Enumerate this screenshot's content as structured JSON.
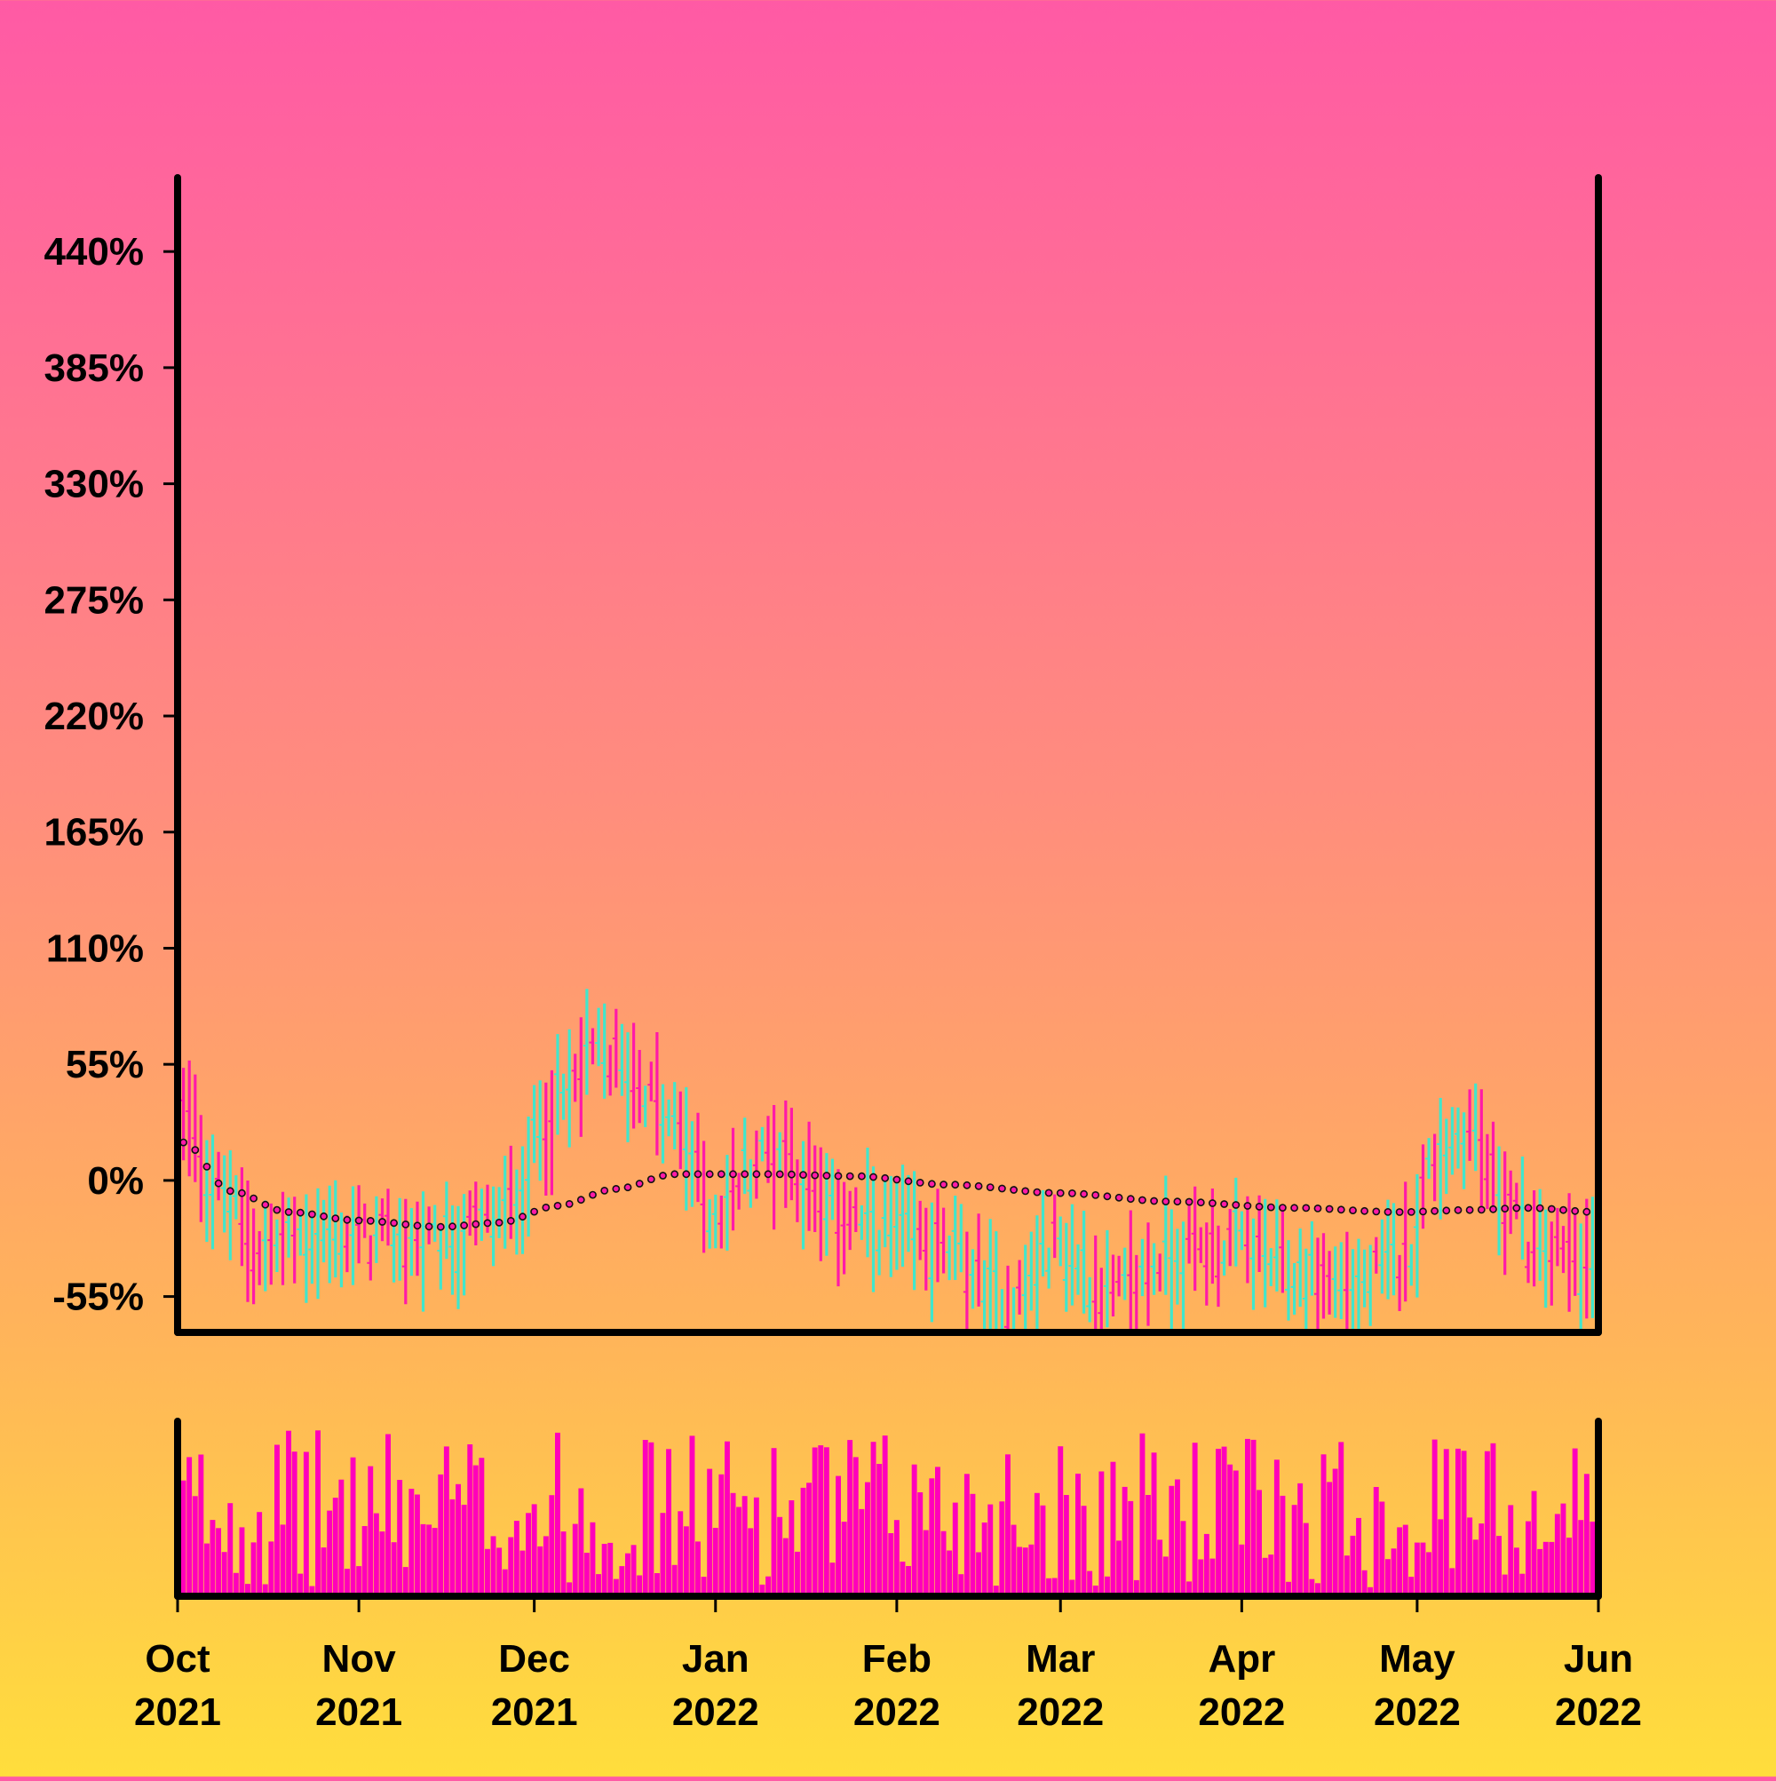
{
  "chart_data": {
    "type": "ohlc",
    "title": "",
    "xlabel": "",
    "ylabel": "",
    "x_range": [
      "2021-10-01",
      "2022-06-01"
    ],
    "y_range": [
      -72,
      475
    ],
    "y_ticks": [
      {
        "value": 440,
        "label": "440%"
      },
      {
        "value": 385,
        "label": "385%"
      },
      {
        "value": 330,
        "label": "330%"
      },
      {
        "value": 275,
        "label": "275%"
      },
      {
        "value": 220,
        "label": "220%"
      },
      {
        "value": 165,
        "label": "165%"
      },
      {
        "value": 110,
        "label": "110%"
      },
      {
        "value": 55,
        "label": "55%"
      },
      {
        "value": 0,
        "label": "0%"
      },
      {
        "value": -55,
        "label": "-55%"
      }
    ],
    "x_ticks": [
      {
        "date": "2021-10-01",
        "month": "Oct",
        "year": "2021"
      },
      {
        "date": "2021-11-01",
        "month": "Nov",
        "year": "2021"
      },
      {
        "date": "2021-12-01",
        "month": "Dec",
        "year": "2021"
      },
      {
        "date": "2022-01-01",
        "month": "Jan",
        "year": "2022"
      },
      {
        "date": "2022-02-01",
        "month": "Feb",
        "year": "2022"
      },
      {
        "date": "2022-03-01",
        "month": "Mar",
        "year": "2022"
      },
      {
        "date": "2022-04-01",
        "month": "Apr",
        "year": "2022"
      },
      {
        "date": "2022-05-01",
        "month": "May",
        "year": "2022"
      },
      {
        "date": "2022-06-01",
        "month": "Jun",
        "year": "2022"
      }
    ],
    "colors": {
      "up": "#40e6cc",
      "down": "#ff1aa8",
      "volume": "#ff00bb",
      "trend_marker": "#ff1aa8",
      "axis": "#000000"
    },
    "ohlc_anchors": [
      {
        "date": "2021-10-02",
        "value": 28
      },
      {
        "date": "2021-10-08",
        "value": -5
      },
      {
        "date": "2021-10-15",
        "value": -32
      },
      {
        "date": "2021-10-25",
        "value": -26
      },
      {
        "date": "2021-11-05",
        "value": -28
      },
      {
        "date": "2021-11-15",
        "value": -30
      },
      {
        "date": "2021-11-25",
        "value": -18
      },
      {
        "date": "2021-12-05",
        "value": 35
      },
      {
        "date": "2021-12-12",
        "value": 60
      },
      {
        "date": "2021-12-18",
        "value": 50
      },
      {
        "date": "2021-12-25",
        "value": 25
      },
      {
        "date": "2022-01-01",
        "value": -15
      },
      {
        "date": "2022-01-08",
        "value": 10
      },
      {
        "date": "2022-01-12",
        "value": 15
      },
      {
        "date": "2022-01-20",
        "value": -15
      },
      {
        "date": "2022-02-01",
        "value": -25
      },
      {
        "date": "2022-02-10",
        "value": -35
      },
      {
        "date": "2022-02-20",
        "value": -60
      },
      {
        "date": "2022-02-28",
        "value": -30
      },
      {
        "date": "2022-03-10",
        "value": -55
      },
      {
        "date": "2022-03-20",
        "value": -35
      },
      {
        "date": "2022-04-01",
        "value": -30
      },
      {
        "date": "2022-04-10",
        "value": -45
      },
      {
        "date": "2022-04-20",
        "value": -50
      },
      {
        "date": "2022-04-28",
        "value": -40
      },
      {
        "date": "2022-05-05",
        "value": 15
      },
      {
        "date": "2022-05-10",
        "value": 25
      },
      {
        "date": "2022-05-15",
        "value": -5
      },
      {
        "date": "2022-05-22",
        "value": -35
      },
      {
        "date": "2022-06-01",
        "value": -40
      }
    ],
    "trend_line": [
      {
        "date": "2021-10-02",
        "value": 18
      },
      {
        "date": "2021-10-10",
        "value": -5
      },
      {
        "date": "2021-10-20",
        "value": -15
      },
      {
        "date": "2021-11-01",
        "value": -19
      },
      {
        "date": "2021-11-15",
        "value": -22
      },
      {
        "date": "2021-11-25",
        "value": -20
      },
      {
        "date": "2021-12-05",
        "value": -12
      },
      {
        "date": "2021-12-15",
        "value": -4
      },
      {
        "date": "2021-12-25",
        "value": 3
      },
      {
        "date": "2022-01-10",
        "value": 3
      },
      {
        "date": "2022-01-25",
        "value": 2
      },
      {
        "date": "2022-02-10",
        "value": -2
      },
      {
        "date": "2022-03-01",
        "value": -6
      },
      {
        "date": "2022-03-20",
        "value": -10
      },
      {
        "date": "2022-04-10",
        "value": -13
      },
      {
        "date": "2022-04-28",
        "value": -15
      },
      {
        "date": "2022-05-10",
        "value": -14
      },
      {
        "date": "2022-05-20",
        "value": -13
      },
      {
        "date": "2022-06-01",
        "value": -15
      }
    ],
    "volume": {
      "min_fraction": 0.05,
      "max_fraction": 0.95
    }
  }
}
